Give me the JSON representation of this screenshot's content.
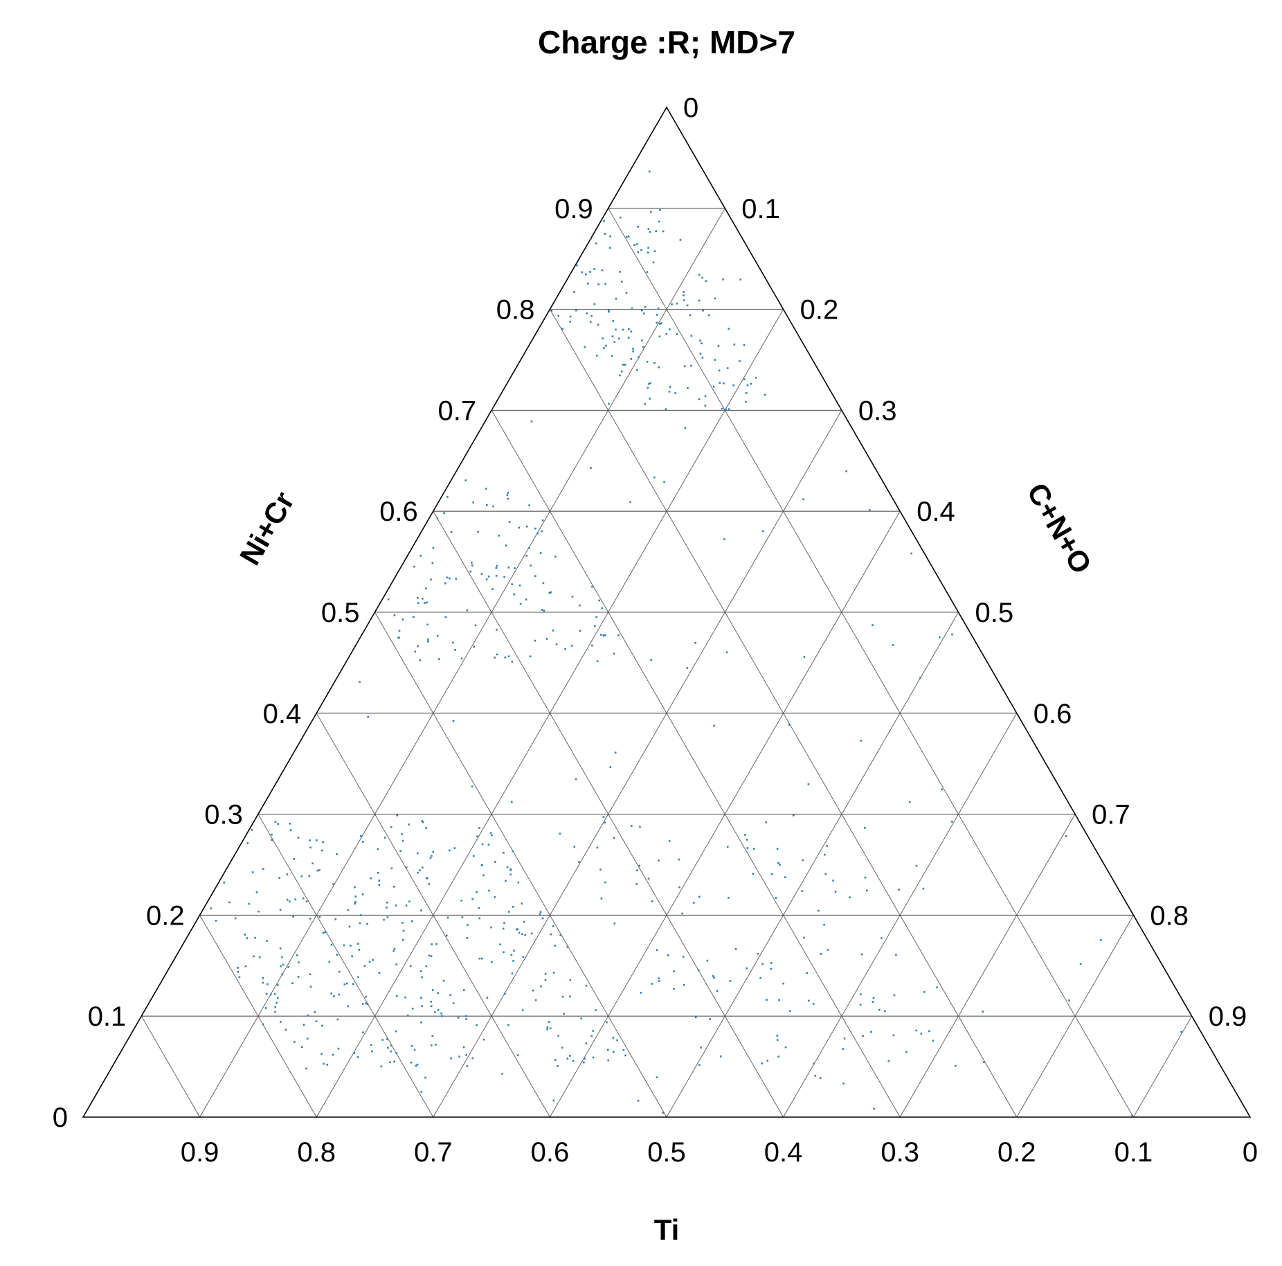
{
  "chart_data": {
    "type": "scatter",
    "subtype": "ternary",
    "title": "Charge :R; MD>7",
    "axes": {
      "bottom": {
        "label": "Ti",
        "ticks": [
          "0.9",
          "0.8",
          "0.7",
          "0.6",
          "0.5",
          "0.4",
          "0.3",
          "0.2",
          "0.1",
          "0"
        ]
      },
      "left": {
        "label": "Ni+Cr",
        "ticks": [
          "0",
          "0.1",
          "0.2",
          "0.3",
          "0.4",
          "0.5",
          "0.6",
          "0.7",
          "0.8",
          "0.9"
        ]
      },
      "right": {
        "label": "C+N+O",
        "ticks": [
          "0",
          "0.1",
          "0.2",
          "0.3",
          "0.4",
          "0.5",
          "0.6",
          "0.7",
          "0.8",
          "0.9"
        ]
      }
    },
    "grid": true,
    "marker_color": "#2c7fb8",
    "point_count": 800,
    "clusters": [
      {
        "comment": "near Ni+Cr-rich apex edge",
        "ti": [
          0.05,
          0.2
        ],
        "nicr": [
          0.7,
          0.9
        ],
        "weight": 0.18
      },
      {
        "comment": "upper middle",
        "ti": [
          0.3,
          0.5
        ],
        "nicr": [
          0.45,
          0.65
        ],
        "weight": 0.14
      },
      {
        "comment": "dense lower-left",
        "ti": [
          0.5,
          0.8
        ],
        "nicr": [
          0.05,
          0.3
        ],
        "weight": 0.42
      },
      {
        "comment": "lower right",
        "ti": [
          0.2,
          0.45
        ],
        "nicr": [
          0.05,
          0.3
        ],
        "weight": 0.14
      },
      {
        "comment": "scatter",
        "ti": [
          0.0,
          0.95
        ],
        "nicr": [
          0.0,
          0.95
        ],
        "weight": 0.12
      }
    ]
  }
}
